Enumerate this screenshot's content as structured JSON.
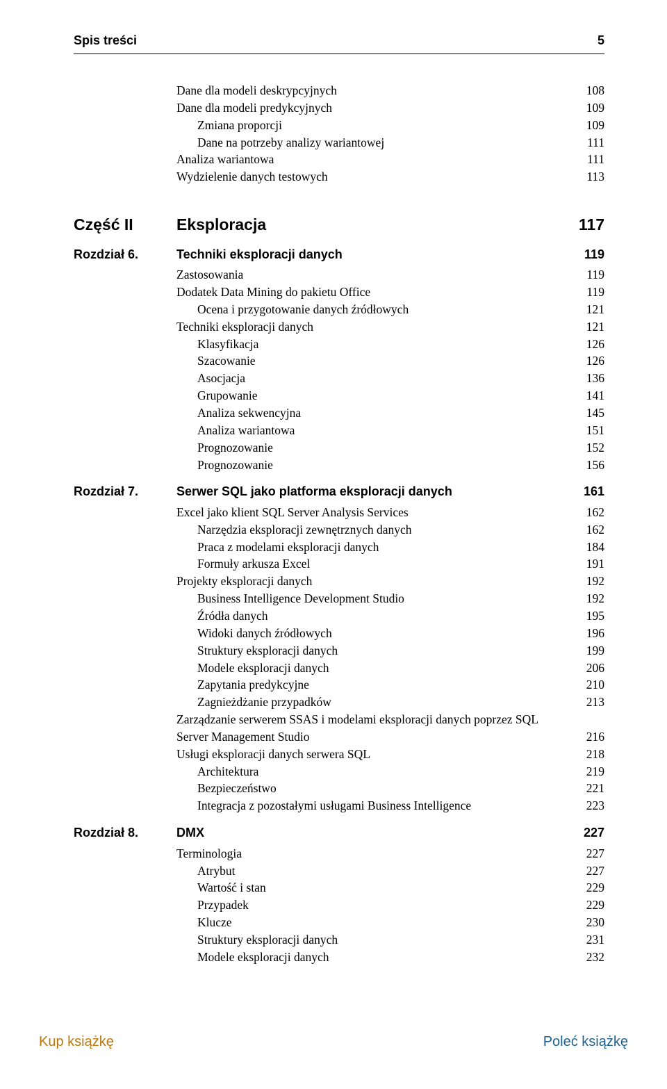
{
  "header": {
    "title": "Spis treści",
    "page": "5"
  },
  "colors": {
    "footer_left": "#b9770e",
    "footer_right": "#1f618d",
    "text": "#000000",
    "bg": "#ffffff"
  },
  "fonts": {
    "body": "Times New Roman",
    "heading": "Arial"
  },
  "intro_block": [
    {
      "label": "Dane dla modeli deskrypcyjnych",
      "page": "108",
      "indent": 0
    },
    {
      "label": "Dane dla modeli predykcyjnych",
      "page": "109",
      "indent": 0
    },
    {
      "label": "Zmiana proporcji",
      "page": "109",
      "indent": 1
    },
    {
      "label": "Dane na potrzeby analizy wariantowej",
      "page": "111",
      "indent": 1
    },
    {
      "label": "Analiza wariantowa",
      "page": "111",
      "indent": 0
    },
    {
      "label": "Wydzielenie danych testowych",
      "page": "113",
      "indent": 0
    }
  ],
  "part": {
    "left": "Część II",
    "title": "Eksploracja",
    "page": "117"
  },
  "chapters": [
    {
      "left": "Rozdział 6.",
      "title": "Techniki eksploracji danych",
      "page": "119",
      "items": [
        {
          "label": "Zastosowania",
          "page": "119",
          "indent": 0
        },
        {
          "label": "Dodatek Data Mining do pakietu Office",
          "page": "119",
          "indent": 0
        },
        {
          "label": "Ocena i przygotowanie danych źródłowych",
          "page": "121",
          "indent": 1
        },
        {
          "label": "Techniki eksploracji danych",
          "page": "121",
          "indent": 0
        },
        {
          "label": "Klasyfikacja",
          "page": "126",
          "indent": 1
        },
        {
          "label": "Szacowanie",
          "page": "126",
          "indent": 1
        },
        {
          "label": "Asocjacja",
          "page": "136",
          "indent": 1
        },
        {
          "label": "Grupowanie",
          "page": "141",
          "indent": 1
        },
        {
          "label": "Analiza sekwencyjna",
          "page": "145",
          "indent": 1
        },
        {
          "label": "Analiza wariantowa",
          "page": "151",
          "indent": 1
        },
        {
          "label": "Prognozowanie",
          "page": "152",
          "indent": 1
        },
        {
          "_spacer_after_label": "Prognozowanie",
          "page": "156",
          "indent": 1
        }
      ]
    },
    {
      "left": "Rozdział 7.",
      "title": "Serwer SQL jako platforma eksploracji danych",
      "page": "161",
      "items": [
        {
          "label": "Excel jako klient SQL Server Analysis Services",
          "page": "162",
          "indent": 0
        },
        {
          "label": "Narzędzia eksploracji zewnętrznych danych",
          "page": "162",
          "indent": 1
        },
        {
          "label": "Praca z modelami eksploracji danych",
          "page": "184",
          "indent": 1
        },
        {
          "label": "Formuły arkusza Excel",
          "page": "191",
          "indent": 1
        },
        {
          "label": "Projekty eksploracji danych",
          "page": "192",
          "indent": 0
        },
        {
          "label": "Business Intelligence Development Studio",
          "page": "192",
          "indent": 1
        },
        {
          "label": "Źródła danych",
          "page": "195",
          "indent": 1
        },
        {
          "label": "Widoki danych źródłowych",
          "page": "196",
          "indent": 1
        },
        {
          "label": "Struktury eksploracji danych",
          "page": "199",
          "indent": 1
        },
        {
          "label": "Modele eksploracji danych",
          "page": "206",
          "indent": 1
        },
        {
          "label": "Zapytania predykcyjne",
          "page": "210",
          "indent": 1
        },
        {
          "label": "Zagnieżdżanie przypadków",
          "page": "213",
          "indent": 1
        },
        {
          "label": "Zarządzanie serwerem SSAS i modelami eksploracji danych poprzez SQL",
          "indent": 0,
          "nowrap_page": false
        },
        {
          "label": "Server Management Studio",
          "page": "216",
          "indent": 0,
          "continuation": true
        },
        {
          "label": "Usługi eksploracji danych serwera SQL",
          "page": "218",
          "indent": 0
        },
        {
          "label": "Architektura",
          "page": "219",
          "indent": 1
        },
        {
          "label": "Bezpieczeństwo",
          "page": "221",
          "indent": 1
        },
        {
          "label": "Integracja z pozostałymi usługami Business Intelligence",
          "page": "223",
          "indent": 1
        }
      ]
    },
    {
      "left": "Rozdział 8.",
      "title": "DMX",
      "page": "227",
      "items": [
        {
          "label": "Terminologia",
          "page": "227",
          "indent": 0
        },
        {
          "label": "Atrybut",
          "page": "227",
          "indent": 1
        },
        {
          "label": "Wartość i stan",
          "page": "229",
          "indent": 1
        },
        {
          "label": "Przypadek",
          "page": "229",
          "indent": 1
        },
        {
          "label": "Klucze",
          "page": "230",
          "indent": 1
        },
        {
          "label": "Struktury eksploracji danych",
          "page": "231",
          "indent": 1
        },
        {
          "label": "Modele eksploracji danych",
          "page": "232",
          "indent": 1
        }
      ]
    }
  ],
  "footer": {
    "left": "Kup książkę",
    "right": "Poleć książkę"
  }
}
